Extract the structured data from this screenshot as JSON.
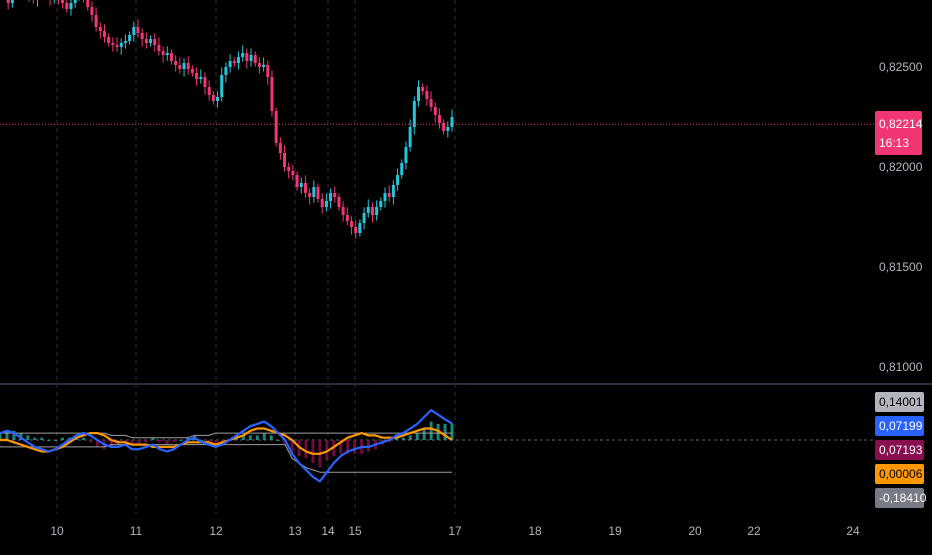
{
  "chart_data": [
    {
      "type": "candlestick",
      "price_axis": {
        "ticks": [
          "0,82500",
          "0,82000",
          "0,81500",
          "0,81000"
        ],
        "tick_values": [
          0.825,
          0.82,
          0.815,
          0.81
        ]
      },
      "last_price": {
        "value": "0,82214",
        "countdown": "16:13",
        "numeric": 0.82214,
        "color": "#f23674"
      },
      "x_axis": {
        "ticks": [
          "10",
          "11",
          "12",
          "13",
          "14",
          "15",
          "17",
          "18",
          "19",
          "20",
          "22",
          "24"
        ],
        "tick_days": [
          10,
          11,
          12,
          13,
          14,
          15,
          17,
          18,
          19,
          20,
          22,
          24
        ],
        "grid_days": [
          10,
          11,
          12,
          13,
          14,
          15,
          17
        ]
      },
      "series": [
        {
          "name": "",
          "up_color": "#22c7dc",
          "down_color": "#f23674",
          "close": [
            0.8286,
            0.8282,
            0.8291,
            0.8288,
            0.8295,
            0.829,
            0.8286,
            0.8284,
            0.829,
            0.8293,
            0.8288,
            0.8284,
            0.8289,
            0.8285,
            0.8282,
            0.8279,
            0.8282,
            0.8287,
            0.8289,
            0.8285,
            0.828,
            0.8276,
            0.827,
            0.8268,
            0.8265,
            0.8262,
            0.8261,
            0.826,
            0.8262,
            0.8263,
            0.8266,
            0.827,
            0.8267,
            0.8264,
            0.8262,
            0.8264,
            0.8261,
            0.8258,
            0.8256,
            0.8257,
            0.8253,
            0.8251,
            0.8249,
            0.8252,
            0.8249,
            0.8247,
            0.8244,
            0.8245,
            0.824,
            0.8236,
            0.8233,
            0.8235,
            0.8246,
            0.825,
            0.8253,
            0.8252,
            0.8255,
            0.8257,
            0.8253,
            0.8256,
            0.8252,
            0.825,
            0.8251,
            0.8245,
            0.8228,
            0.8212,
            0.8207,
            0.82,
            0.8198,
            0.8196,
            0.819,
            0.8192,
            0.8187,
            0.8185,
            0.819,
            0.8184,
            0.818,
            0.8183,
            0.8187,
            0.8185,
            0.818,
            0.8176,
            0.8173,
            0.817,
            0.8167,
            0.8172,
            0.8177,
            0.818,
            0.8176,
            0.818,
            0.8183,
            0.8187,
            0.8185,
            0.8191,
            0.8196,
            0.8202,
            0.821,
            0.822,
            0.8233,
            0.824,
            0.8238,
            0.8234,
            0.823,
            0.8226,
            0.8222,
            0.8218,
            0.822,
            0.8225
          ]
        }
      ]
    },
    {
      "type": "line",
      "price_axis": {
        "labels": [
          {
            "text": "0,14001",
            "value": 0.14001,
            "color": "#b2b5be",
            "text_color": "#000000"
          },
          {
            "text": "0,07199",
            "value": 0.07199,
            "color": "#2962ff",
            "text_color": "#ffffff"
          },
          {
            "text": "0,07193",
            "value": 0.07193,
            "color": "#880e4f",
            "text_color": "#ffffff"
          },
          {
            "text": "0,00006",
            "value": 6e-05,
            "color": "#ff9800",
            "text_color": "#000000"
          },
          {
            "text": "-0,18410",
            "value": -0.1841,
            "color": "#787b86",
            "text_color": "#ffffff"
          }
        ]
      },
      "series": [
        {
          "name": "",
          "color": "#2962ff",
          "values": [
            0.03,
            0.04,
            0.03,
            0.01,
            -0.01,
            -0.03,
            -0.04,
            -0.05,
            -0.04,
            -0.02,
            0.0,
            0.02,
            0.03,
            0.02,
            0.0,
            -0.02,
            -0.03,
            -0.03,
            -0.02,
            -0.04,
            -0.04,
            -0.03,
            -0.02,
            -0.04,
            -0.05,
            -0.04,
            -0.02,
            0.0,
            0.01,
            -0.01,
            -0.02,
            -0.03,
            -0.02,
            0.0,
            0.02,
            0.04,
            0.06,
            0.07,
            0.08,
            0.06,
            0.03,
            0.0,
            -0.06,
            -0.1,
            -0.13,
            -0.16,
            -0.18,
            -0.14,
            -0.1,
            -0.07,
            -0.05,
            -0.04,
            -0.03,
            -0.03,
            -0.02,
            -0.01,
            0.0,
            0.02,
            0.03,
            0.05,
            0.07,
            0.1,
            0.13,
            0.11,
            0.09,
            0.072
          ]
        },
        {
          "name": "",
          "color": "#ff9800",
          "values": [
            0.0,
            0.0,
            -0.01,
            -0.02,
            -0.03,
            -0.04,
            -0.05,
            -0.05,
            -0.04,
            -0.03,
            -0.01,
            0.01,
            0.02,
            0.03,
            0.03,
            0.02,
            0.0,
            -0.01,
            -0.01,
            -0.02,
            -0.02,
            -0.02,
            -0.03,
            -0.03,
            -0.03,
            -0.03,
            -0.02,
            -0.01,
            -0.01,
            -0.01,
            -0.01,
            -0.02,
            -0.01,
            0.0,
            0.01,
            0.02,
            0.04,
            0.05,
            0.05,
            0.04,
            0.03,
            0.02,
            0.0,
            -0.03,
            -0.05,
            -0.06,
            -0.06,
            -0.05,
            -0.03,
            -0.01,
            0.01,
            0.02,
            0.03,
            0.02,
            0.02,
            0.01,
            0.01,
            0.01,
            0.02,
            0.03,
            0.04,
            0.05,
            0.05,
            0.04,
            0.02,
            0.0
          ]
        },
        {
          "name": "",
          "color": "#9e9e9e",
          "values": [
            0.03,
            0.03,
            0.03,
            0.03,
            0.03,
            0.03,
            0.03,
            0.03,
            0.03,
            0.03,
            0.03,
            0.03,
            0.03,
            0.03,
            0.03,
            0.03,
            0.02,
            0.02,
            0.02,
            0.01,
            0.01,
            0.01,
            0.01,
            0.01,
            0.01,
            0.01,
            0.01,
            0.01,
            0.02,
            0.02,
            0.02,
            0.03,
            0.03,
            0.03,
            0.03,
            0.03,
            0.03,
            0.03,
            0.03,
            0.03,
            0.03,
            0.03,
            0.03,
            0.03,
            0.03,
            0.03,
            0.03,
            0.03,
            0.03,
            0.03,
            0.03,
            0.03,
            0.03,
            0.03,
            0.03,
            0.03,
            0.03,
            0.03,
            0.03,
            0.03,
            0.03,
            0.03,
            0.03,
            0.03,
            0.03,
            0.03
          ]
        },
        {
          "name": "",
          "color": "#9e9e9e",
          "values": [
            -0.03,
            -0.03,
            -0.03,
            -0.03,
            -0.03,
            -0.03,
            -0.03,
            -0.03,
            -0.03,
            -0.03,
            -0.03,
            -0.03,
            -0.03,
            -0.03,
            -0.03,
            -0.03,
            -0.02,
            -0.02,
            -0.02,
            -0.02,
            -0.02,
            -0.02,
            -0.02,
            -0.02,
            -0.02,
            -0.02,
            -0.02,
            -0.02,
            -0.02,
            -0.02,
            -0.02,
            -0.02,
            -0.02,
            -0.02,
            -0.02,
            -0.02,
            -0.02,
            -0.02,
            -0.02,
            -0.02,
            -0.02,
            -0.02,
            -0.08,
            -0.1,
            -0.12,
            -0.13,
            -0.14,
            -0.14,
            -0.14,
            -0.14,
            -0.14,
            -0.14,
            -0.14,
            -0.14,
            -0.14,
            -0.14,
            -0.14,
            -0.14,
            -0.14,
            -0.14,
            -0.14,
            -0.14,
            -0.14,
            -0.14,
            -0.14,
            -0.14
          ]
        }
      ],
      "histogram": {
        "up_color": "#26a69a",
        "down_color": "#880e4f"
      }
    }
  ]
}
